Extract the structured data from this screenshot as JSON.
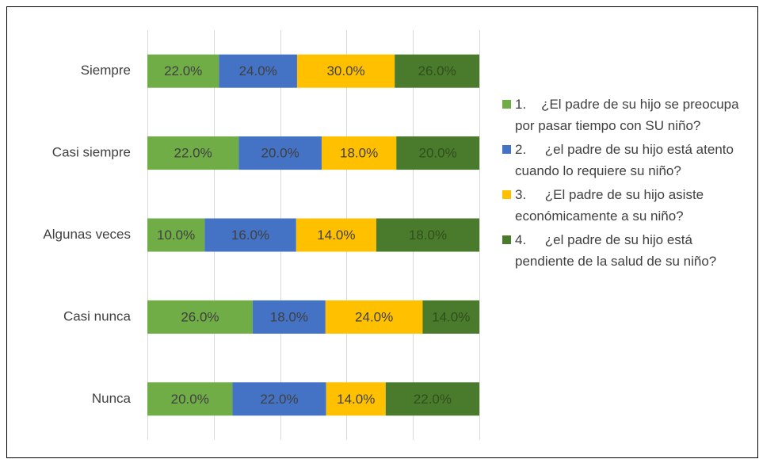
{
  "chart_data": {
    "type": "bar",
    "orientation": "horizontal",
    "stacked": "percent",
    "categories": [
      "Siempre",
      "Casi siempre",
      "Algunas veces",
      "Casi nunca",
      "Nunca"
    ],
    "series": [
      {
        "name": "1.    ¿El padre de su hijo se preocupa por pasar tiempo con SU niño?",
        "color": "#70ad47",
        "values": [
          22,
          22,
          10,
          26,
          20
        ],
        "value_labels": [
          "22.0%",
          "22.0%",
          "10.0%",
          "26.0%",
          "20.0%"
        ]
      },
      {
        "name": "2.     ¿el padre de su hijo está atento cuando lo requiere su niño?",
        "color": "#4472c4",
        "values": [
          24,
          20,
          16,
          18,
          22
        ],
        "value_labels": [
          "24.0%",
          "20.0%",
          "16.0%",
          "18.0%",
          "22.0%"
        ]
      },
      {
        "name": "3.     ¿El padre de su hijo asiste económicamente a su niño?",
        "color": "#ffc000",
        "values": [
          30,
          18,
          14,
          24,
          14
        ],
        "value_labels": [
          "30.0%",
          "18.0%",
          "14.0%",
          "24.0%",
          "14.0%"
        ]
      },
      {
        "name": "4.     ¿el padre de su hijo está pendiente de la salud de su niño?",
        "color": "#4a7a2c",
        "values": [
          26,
          20,
          18,
          14,
          22
        ],
        "value_labels": [
          "26.0%",
          "20.0%",
          "18.0%",
          "14.0%",
          "22.0%"
        ]
      }
    ],
    "xlim": [
      0,
      100
    ],
    "xticks": [
      0,
      20,
      40,
      60,
      80,
      100
    ],
    "grid": true,
    "legend": "right"
  }
}
